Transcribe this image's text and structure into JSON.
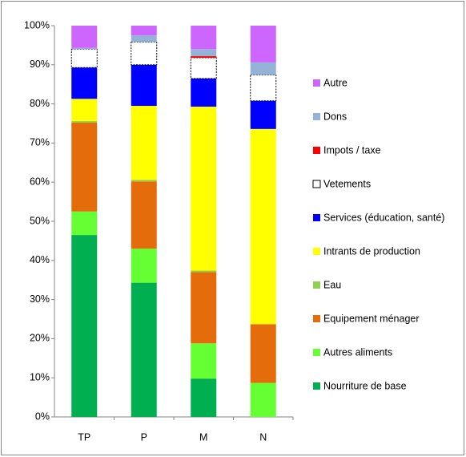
{
  "chart_data": {
    "type": "stacked_bar",
    "categories": [
      "TP",
      "P",
      "M",
      "N"
    ],
    "ylim": [
      0,
      100
    ],
    "yticks": [
      {
        "value": 0,
        "label": "0%"
      },
      {
        "value": 10,
        "label": "10%"
      },
      {
        "value": 20,
        "label": "20%"
      },
      {
        "value": 30,
        "label": "30%"
      },
      {
        "value": 40,
        "label": "40%"
      },
      {
        "value": 50,
        "label": "50%"
      },
      {
        "value": 60,
        "label": "60%"
      },
      {
        "value": 70,
        "label": "70%"
      },
      {
        "value": 80,
        "label": "80%"
      },
      {
        "value": 90,
        "label": "90%"
      },
      {
        "value": 100,
        "label": "100%"
      }
    ],
    "grid": false,
    "legend": "right",
    "series": [
      {
        "name": "Nourriture de base",
        "color": "#00b050",
        "values": [
          46.5,
          34.3,
          9.8,
          0
        ]
      },
      {
        "name": "Autres aliments",
        "color": "#66ff33",
        "values": [
          6,
          8.7,
          9,
          8.7
        ]
      },
      {
        "name": "Equipement ménager",
        "color": "#e46c0a",
        "values": [
          22.7,
          17.2,
          18.2,
          15
        ]
      },
      {
        "name": "Eau",
        "color": "#92d050",
        "values": [
          0.4,
          0.4,
          0.4,
          0
        ]
      },
      {
        "name": "Intrants de production",
        "color": "#ffff00",
        "values": [
          5.7,
          18.9,
          41.9,
          49.9
        ]
      },
      {
        "name": "Services (éducation, santé)",
        "color": "#0000ff",
        "values": [
          8,
          10.5,
          7.2,
          7.2
        ]
      },
      {
        "name": "Vetements",
        "color": "#ffffff",
        "edgecolor": "#000000",
        "values": [
          4.7,
          5.8,
          5.3,
          6.6
        ]
      },
      {
        "name": "Impots / taxe",
        "color": "#ff0000",
        "values": [
          0,
          0,
          0.4,
          0
        ]
      },
      {
        "name": "Dons",
        "color": "#95b3d7",
        "values": [
          0.3,
          1.7,
          1.8,
          3.2
        ]
      },
      {
        "name": "Autre",
        "color": "#cc66ff",
        "values": [
          5.7,
          2.5,
          6,
          9.4
        ]
      }
    ]
  }
}
